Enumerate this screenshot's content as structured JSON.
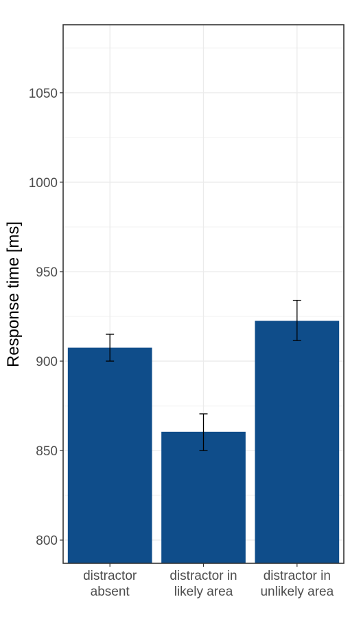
{
  "chart_data": {
    "type": "bar",
    "categories": [
      [
        "distractor",
        "absent"
      ],
      [
        "distractor in",
        "likely area"
      ],
      [
        "distractor in",
        "unlikely area"
      ]
    ],
    "values": [
      907.5,
      860.5,
      922.5
    ],
    "errors": [
      {
        "low": 900,
        "high": 915
      },
      {
        "low": 850,
        "high": 870.5
      },
      {
        "low": 911.5,
        "high": 934
      }
    ],
    "xlabel": "",
    "ylabel": "Response time [ms]",
    "ylim": [
      787,
      1088
    ],
    "yticks": [
      800,
      850,
      900,
      950,
      1000,
      1050
    ],
    "grid": true,
    "bar_color": "#0f4d8a"
  }
}
